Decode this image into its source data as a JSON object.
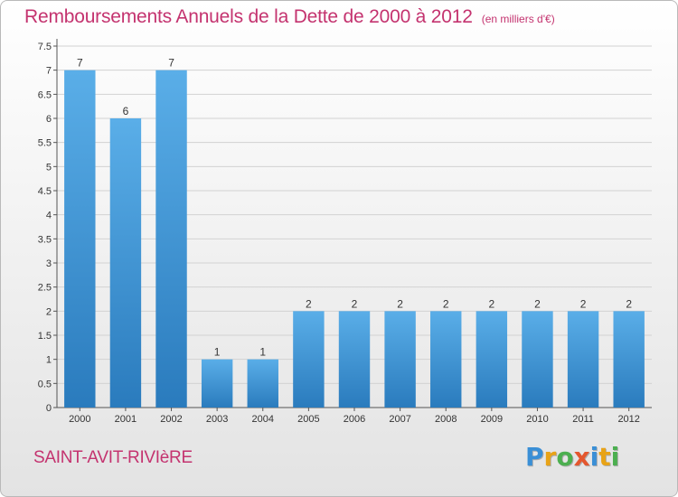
{
  "header": {
    "title": "Remboursements Annuels de la Dette de 2000 à 2012",
    "subtitle": "(en milliers d'€)"
  },
  "footer": {
    "commune": "SAINT-AVIT-RIVIèRE",
    "logo_letters": [
      "P",
      "r",
      "o",
      "x",
      "i",
      "t",
      "i"
    ],
    "logo_colors": [
      "#3a8fd6",
      "#e8a317",
      "#4caf50",
      "#e4572e",
      "#3a8fd6",
      "#e8a317",
      "#4caf50"
    ]
  },
  "colors": {
    "bar_light": "#5aaee8",
    "bar_dark": "#2a7bbd",
    "grid": "#d2d2d2",
    "axis": "#555555",
    "accent": "#c4336f"
  },
  "chart_data": {
    "type": "bar",
    "title": "Remboursements Annuels de la Dette de 2000 à 2012",
    "xlabel": "",
    "ylabel": "",
    "categories": [
      "2000",
      "2001",
      "2002",
      "2003",
      "2004",
      "2005",
      "2006",
      "2007",
      "2008",
      "2009",
      "2010",
      "2011",
      "2012"
    ],
    "values": [
      7,
      6,
      7,
      1,
      1,
      2,
      2,
      2,
      2,
      2,
      2,
      2,
      2
    ],
    "data_labels": [
      "7",
      "6",
      "7",
      "1",
      "1",
      "2",
      "2",
      "2",
      "2",
      "2",
      "2",
      "2",
      "2"
    ],
    "ylim": [
      0,
      7.5
    ],
    "yticks": [
      "0",
      "0.5",
      "1",
      "1.5",
      "2",
      "2.5",
      "3",
      "3.5",
      "4",
      "4.5",
      "5",
      "5.5",
      "6",
      "6.5",
      "7",
      "7.5"
    ],
    "ytick_values": [
      0,
      0.5,
      1,
      1.5,
      2,
      2.5,
      3,
      3.5,
      4,
      4.5,
      5,
      5.5,
      6,
      6.5,
      7,
      7.5
    ],
    "grid": true,
    "legend": "none"
  }
}
